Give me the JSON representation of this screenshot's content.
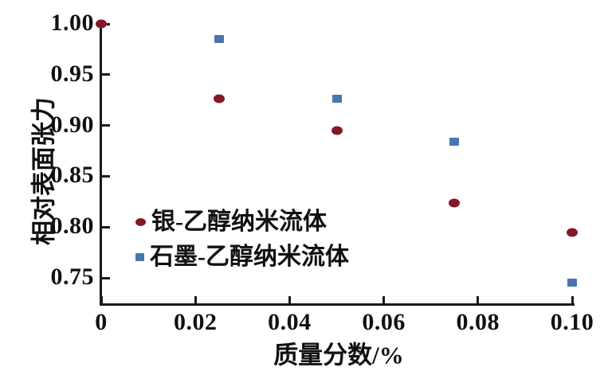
{
  "figure": {
    "background": "#ffffff",
    "axis_color": "#1a1a1a"
  },
  "chart_data": {
    "type": "scatter",
    "title": "",
    "xlabel": "质量分数/%",
    "ylabel": "相对表面张力",
    "xlim": [
      0,
      0.1
    ],
    "ylim": [
      0.725,
      1.0
    ],
    "xticks": [
      0,
      0.02,
      0.04,
      0.06,
      0.08,
      0.1
    ],
    "xtick_labels": [
      "0",
      "0.02",
      "0.04",
      "0.06",
      "0.08",
      "0.10"
    ],
    "yticks": [
      0.75,
      0.8,
      0.85,
      0.9,
      0.95,
      1.0
    ],
    "ytick_labels": [
      "0.75",
      "0.80",
      "0.85",
      "0.90",
      "0.95",
      "1.00"
    ],
    "grid": false,
    "legend_position": "inside-lower-left",
    "series": [
      {
        "name": "银-乙醇纳米流体",
        "marker": "circle",
        "color": "#84182a",
        "x": [
          0,
          0.025,
          0.05,
          0.075,
          0.1
        ],
        "y": [
          1.0,
          0.926,
          0.895,
          0.824,
          0.795
        ]
      },
      {
        "name": "石墨-乙醇纳米流体",
        "marker": "square",
        "color": "#4a74ad",
        "x": [
          0.025,
          0.05,
          0.075,
          0.1
        ],
        "y": [
          0.985,
          0.926,
          0.884,
          0.745
        ]
      }
    ]
  }
}
